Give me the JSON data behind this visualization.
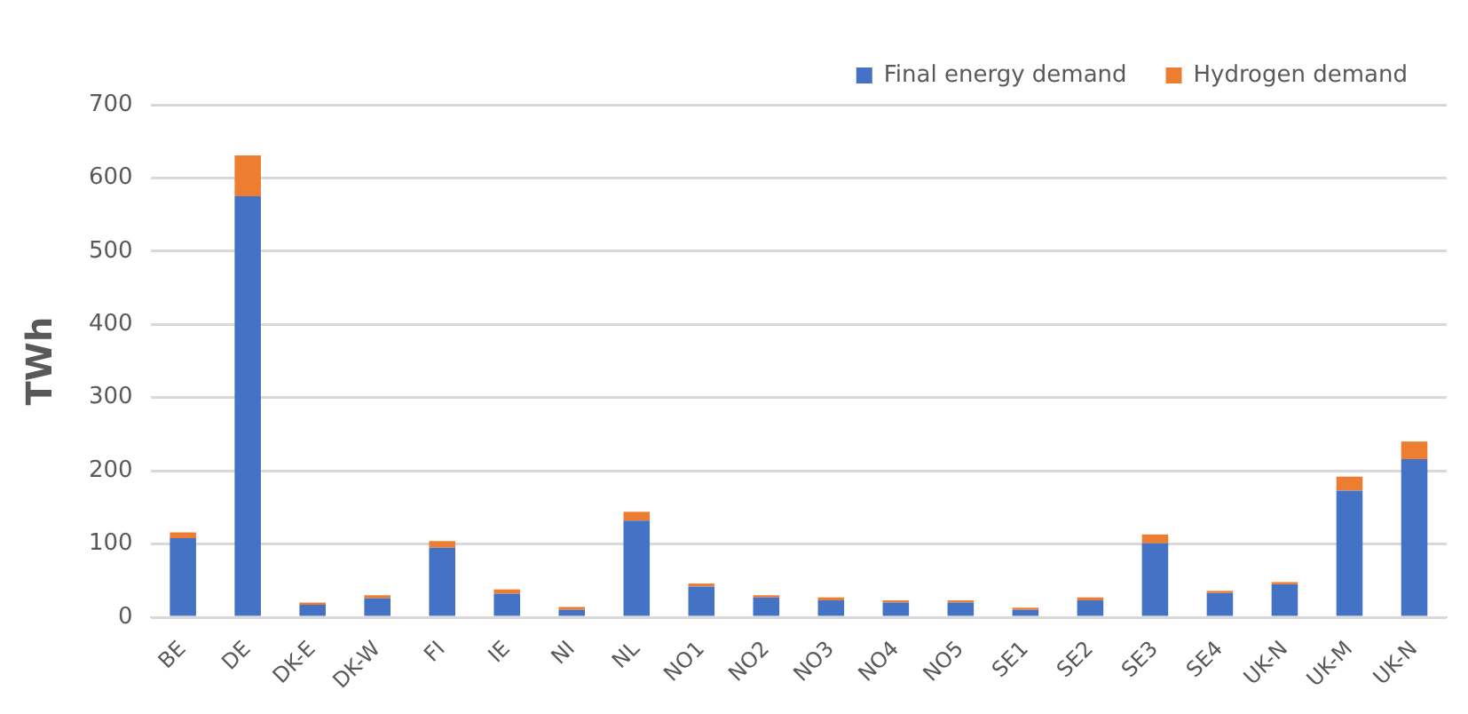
{
  "chart_data": {
    "type": "bar",
    "stacked": true,
    "ylabel": "TWh",
    "categories": [
      "BE",
      "DE",
      "DK-E",
      "DK-W",
      "FI",
      "IE",
      "NI",
      "NL",
      "NO1",
      "NO2",
      "NO3",
      "NO4",
      "NO5",
      "SE1",
      "SE2",
      "SE3",
      "SE4",
      "UK-N",
      "UK-M",
      "UK-N"
    ],
    "series": [
      {
        "name": "Final energy demand",
        "color": "#4472c4",
        "values": [
          108,
          575,
          17,
          26,
          95,
          32,
          10,
          132,
          42,
          27,
          23,
          20,
          20,
          10,
          23,
          101,
          33,
          45,
          173,
          216
        ]
      },
      {
        "name": "Hydrogen demand",
        "color": "#ed7d31",
        "values": [
          8,
          56,
          3,
          4,
          9,
          6,
          4,
          12,
          4,
          3,
          4,
          3,
          3,
          3,
          4,
          12,
          3,
          3,
          19,
          24
        ]
      }
    ],
    "ylim": [
      0,
      700
    ],
    "yticks": [
      0,
      100,
      200,
      300,
      400,
      500,
      600,
      700
    ],
    "grid": "y",
    "legend": "top right"
  }
}
